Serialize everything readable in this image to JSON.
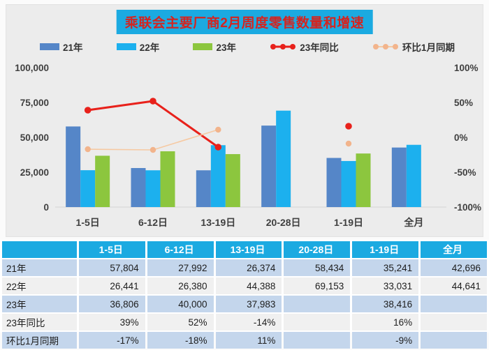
{
  "chart_data": {
    "type": "bar+line combo",
    "title": "乘联会主要厂商2月周度零售数量和增速",
    "categories": [
      "1-5日",
      "6-12日",
      "13-19日",
      "20-28日",
      "1-19日",
      "全月"
    ],
    "series": [
      {
        "name": "21年",
        "type": "bar",
        "axis": "left",
        "color": "#5586C8",
        "values": [
          57804,
          27992,
          26374,
          58434,
          35241,
          42696
        ]
      },
      {
        "name": "22年",
        "type": "bar",
        "axis": "left",
        "color": "#1CB0EE",
        "values": [
          26441,
          26380,
          44388,
          69153,
          33031,
          44641
        ]
      },
      {
        "name": "23年",
        "type": "bar",
        "axis": "left",
        "color": "#8CC63E",
        "values": [
          36806,
          40000,
          37983,
          null,
          38416,
          null
        ]
      },
      {
        "name": "23年同比",
        "type": "line",
        "axis": "right",
        "color": "#E8211B",
        "line_color": "#E8211B",
        "line_width": 3,
        "marker_r": 4.8,
        "values": [
          39,
          52,
          -14,
          null,
          16,
          null
        ]
      },
      {
        "name": "环比1月同期",
        "type": "line",
        "axis": "right",
        "color": "#F2B48C",
        "line_color": "#F6C9A2",
        "line_width": 1.6,
        "marker_r": 4.2,
        "values": [
          -17,
          -18,
          11,
          null,
          -9,
          null
        ]
      }
    ],
    "left_axis": {
      "max": 100000,
      "ticks": [
        0,
        25000,
        50000,
        75000,
        100000
      ],
      "labels": [
        "0",
        "25,000",
        "50,000",
        "75,000",
        "100,000"
      ]
    },
    "right_axis": {
      "min": -100,
      "max": 100,
      "ticks": [
        -100,
        -50,
        0,
        50,
        100
      ],
      "labels": [
        "-100%",
        "-50%",
        "0%",
        "50%",
        "100%"
      ]
    },
    "grid": false,
    "legend_position": "top"
  },
  "table": {
    "headers": [
      "",
      "1-5日",
      "6-12日",
      "13-19日",
      "20-28日",
      "1-19日",
      "全月"
    ],
    "rows": [
      {
        "label": "21年",
        "values": [
          "57,804",
          "27,992",
          "26,374",
          "58,434",
          "35,241",
          "42,696"
        ]
      },
      {
        "label": "22年",
        "values": [
          "26,441",
          "26,380",
          "44,388",
          "69,153",
          "33,031",
          "44,641"
        ]
      },
      {
        "label": "23年",
        "values": [
          "36,806",
          "40,000",
          "37,983",
          "",
          "38,416",
          ""
        ]
      },
      {
        "label": "23年同比",
        "values": [
          "39%",
          "52%",
          "-14%",
          "",
          "16%",
          ""
        ]
      },
      {
        "label": "环比1月同期",
        "values": [
          "-17%",
          "-18%",
          "11%",
          "",
          "-9%",
          ""
        ]
      }
    ]
  },
  "colors": {
    "panel_bg": "#ECECEC",
    "title_bg": "#1BAAE1",
    "title_text": "#D42420",
    "bar_21": "#5586C8",
    "bar_22": "#1CB0EE",
    "bar_23": "#8CC63E",
    "line_yoy_red": "#E8211B",
    "line_mom_peach": "#F2B48C",
    "table_header_bg": "#1BAAE1",
    "table_row_blue": "#C4D6EC",
    "table_row_gray": "#F0F0F0",
    "axis_text": "#3F3F3F"
  }
}
